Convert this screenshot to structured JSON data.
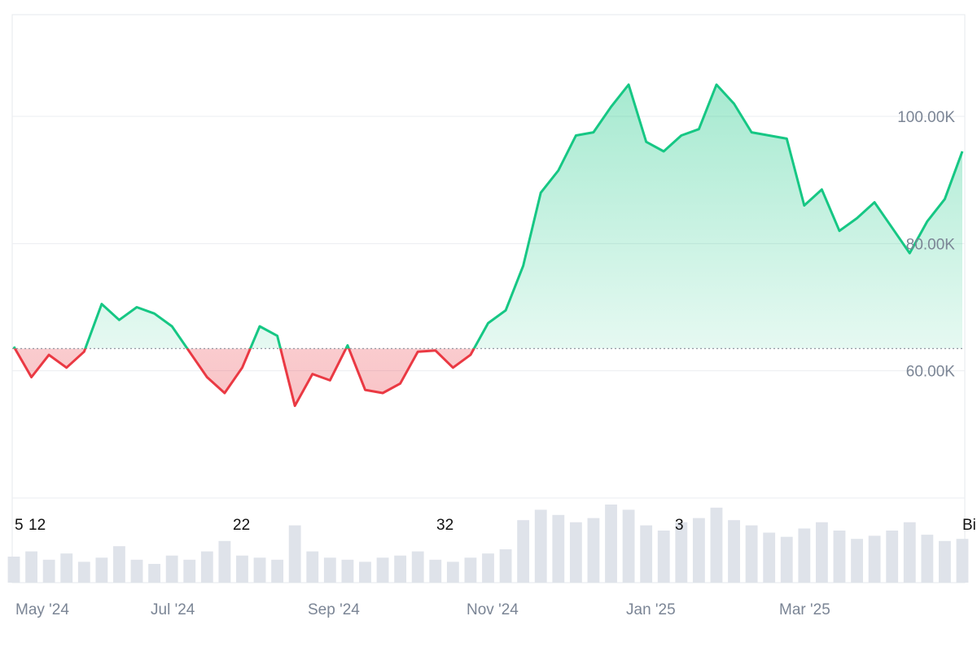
{
  "chart_data": {
    "type": "area",
    "baseline": 63500,
    "ylim": [
      40000,
      116000
    ],
    "y_ticks": [
      {
        "value": 60000,
        "label": "60.00K"
      },
      {
        "value": 80000,
        "label": "80.00K"
      },
      {
        "value": 100000,
        "label": "100.00K"
      }
    ],
    "x_ticks": [
      "May '24",
      "Jul '24",
      "Sep '24",
      "Nov '24",
      "Jan '25",
      "Mar '25"
    ],
    "event_markers": [
      "5",
      "12",
      "22",
      "32",
      "3",
      "Bi"
    ],
    "grid": true,
    "colors": {
      "up_line": "#16c784",
      "up_fill": "#16c784",
      "down_line": "#ea3943",
      "down_fill": "#ea3943",
      "grid": "#ebedf0",
      "axis_text": "#7b8595",
      "volume": "#dfe3ea"
    },
    "x": [
      "2024-04-15",
      "2024-04-22",
      "2024-04-29",
      "2024-05-06",
      "2024-05-13",
      "2024-05-20",
      "2024-05-27",
      "2024-06-03",
      "2024-06-10",
      "2024-06-17",
      "2024-06-24",
      "2024-07-01",
      "2024-07-08",
      "2024-07-15",
      "2024-07-22",
      "2024-07-29",
      "2024-08-05",
      "2024-08-12",
      "2024-08-19",
      "2024-08-26",
      "2024-09-02",
      "2024-09-09",
      "2024-09-16",
      "2024-09-23",
      "2024-09-30",
      "2024-10-07",
      "2024-10-14",
      "2024-10-21",
      "2024-10-28",
      "2024-11-04",
      "2024-11-11",
      "2024-11-18",
      "2024-11-25",
      "2024-12-02",
      "2024-12-09",
      "2024-12-16",
      "2024-12-23",
      "2024-12-30",
      "2025-01-06",
      "2025-01-13",
      "2025-01-20",
      "2025-01-27",
      "2025-02-03",
      "2025-02-10",
      "2025-02-17",
      "2025-02-24",
      "2025-03-03",
      "2025-03-10",
      "2025-03-17",
      "2025-03-24",
      "2025-03-31",
      "2025-04-07",
      "2025-04-14",
      "2025-04-21",
      "2025-04-28"
    ],
    "values": [
      63800,
      59000,
      62500,
      60500,
      63000,
      70500,
      68000,
      70000,
      69000,
      67000,
      63000,
      59000,
      56500,
      60500,
      67000,
      65500,
      54500,
      59500,
      58500,
      64000,
      57000,
      56500,
      58000,
      63000,
      63200,
      60500,
      62500,
      67500,
      69500,
      76500,
      88000,
      91500,
      97000,
      97500,
      101500,
      105000,
      96000,
      94500,
      97000,
      98000,
      105000,
      102000,
      97500,
      97000,
      96500,
      86000,
      88500,
      82000,
      84000,
      86500,
      82500,
      78500,
      83500,
      87000,
      94500
    ],
    "volume": [
      25,
      30,
      22,
      28,
      20,
      24,
      35,
      22,
      18,
      26,
      22,
      30,
      40,
      26,
      24,
      22,
      55,
      30,
      24,
      22,
      20,
      24,
      26,
      30,
      22,
      20,
      24,
      28,
      32,
      60,
      70,
      65,
      58,
      62,
      75,
      70,
      55,
      50,
      58,
      62,
      72,
      60,
      55,
      48,
      44,
      52,
      58,
      50,
      42,
      45,
      50,
      58,
      46,
      40,
      42
    ]
  }
}
